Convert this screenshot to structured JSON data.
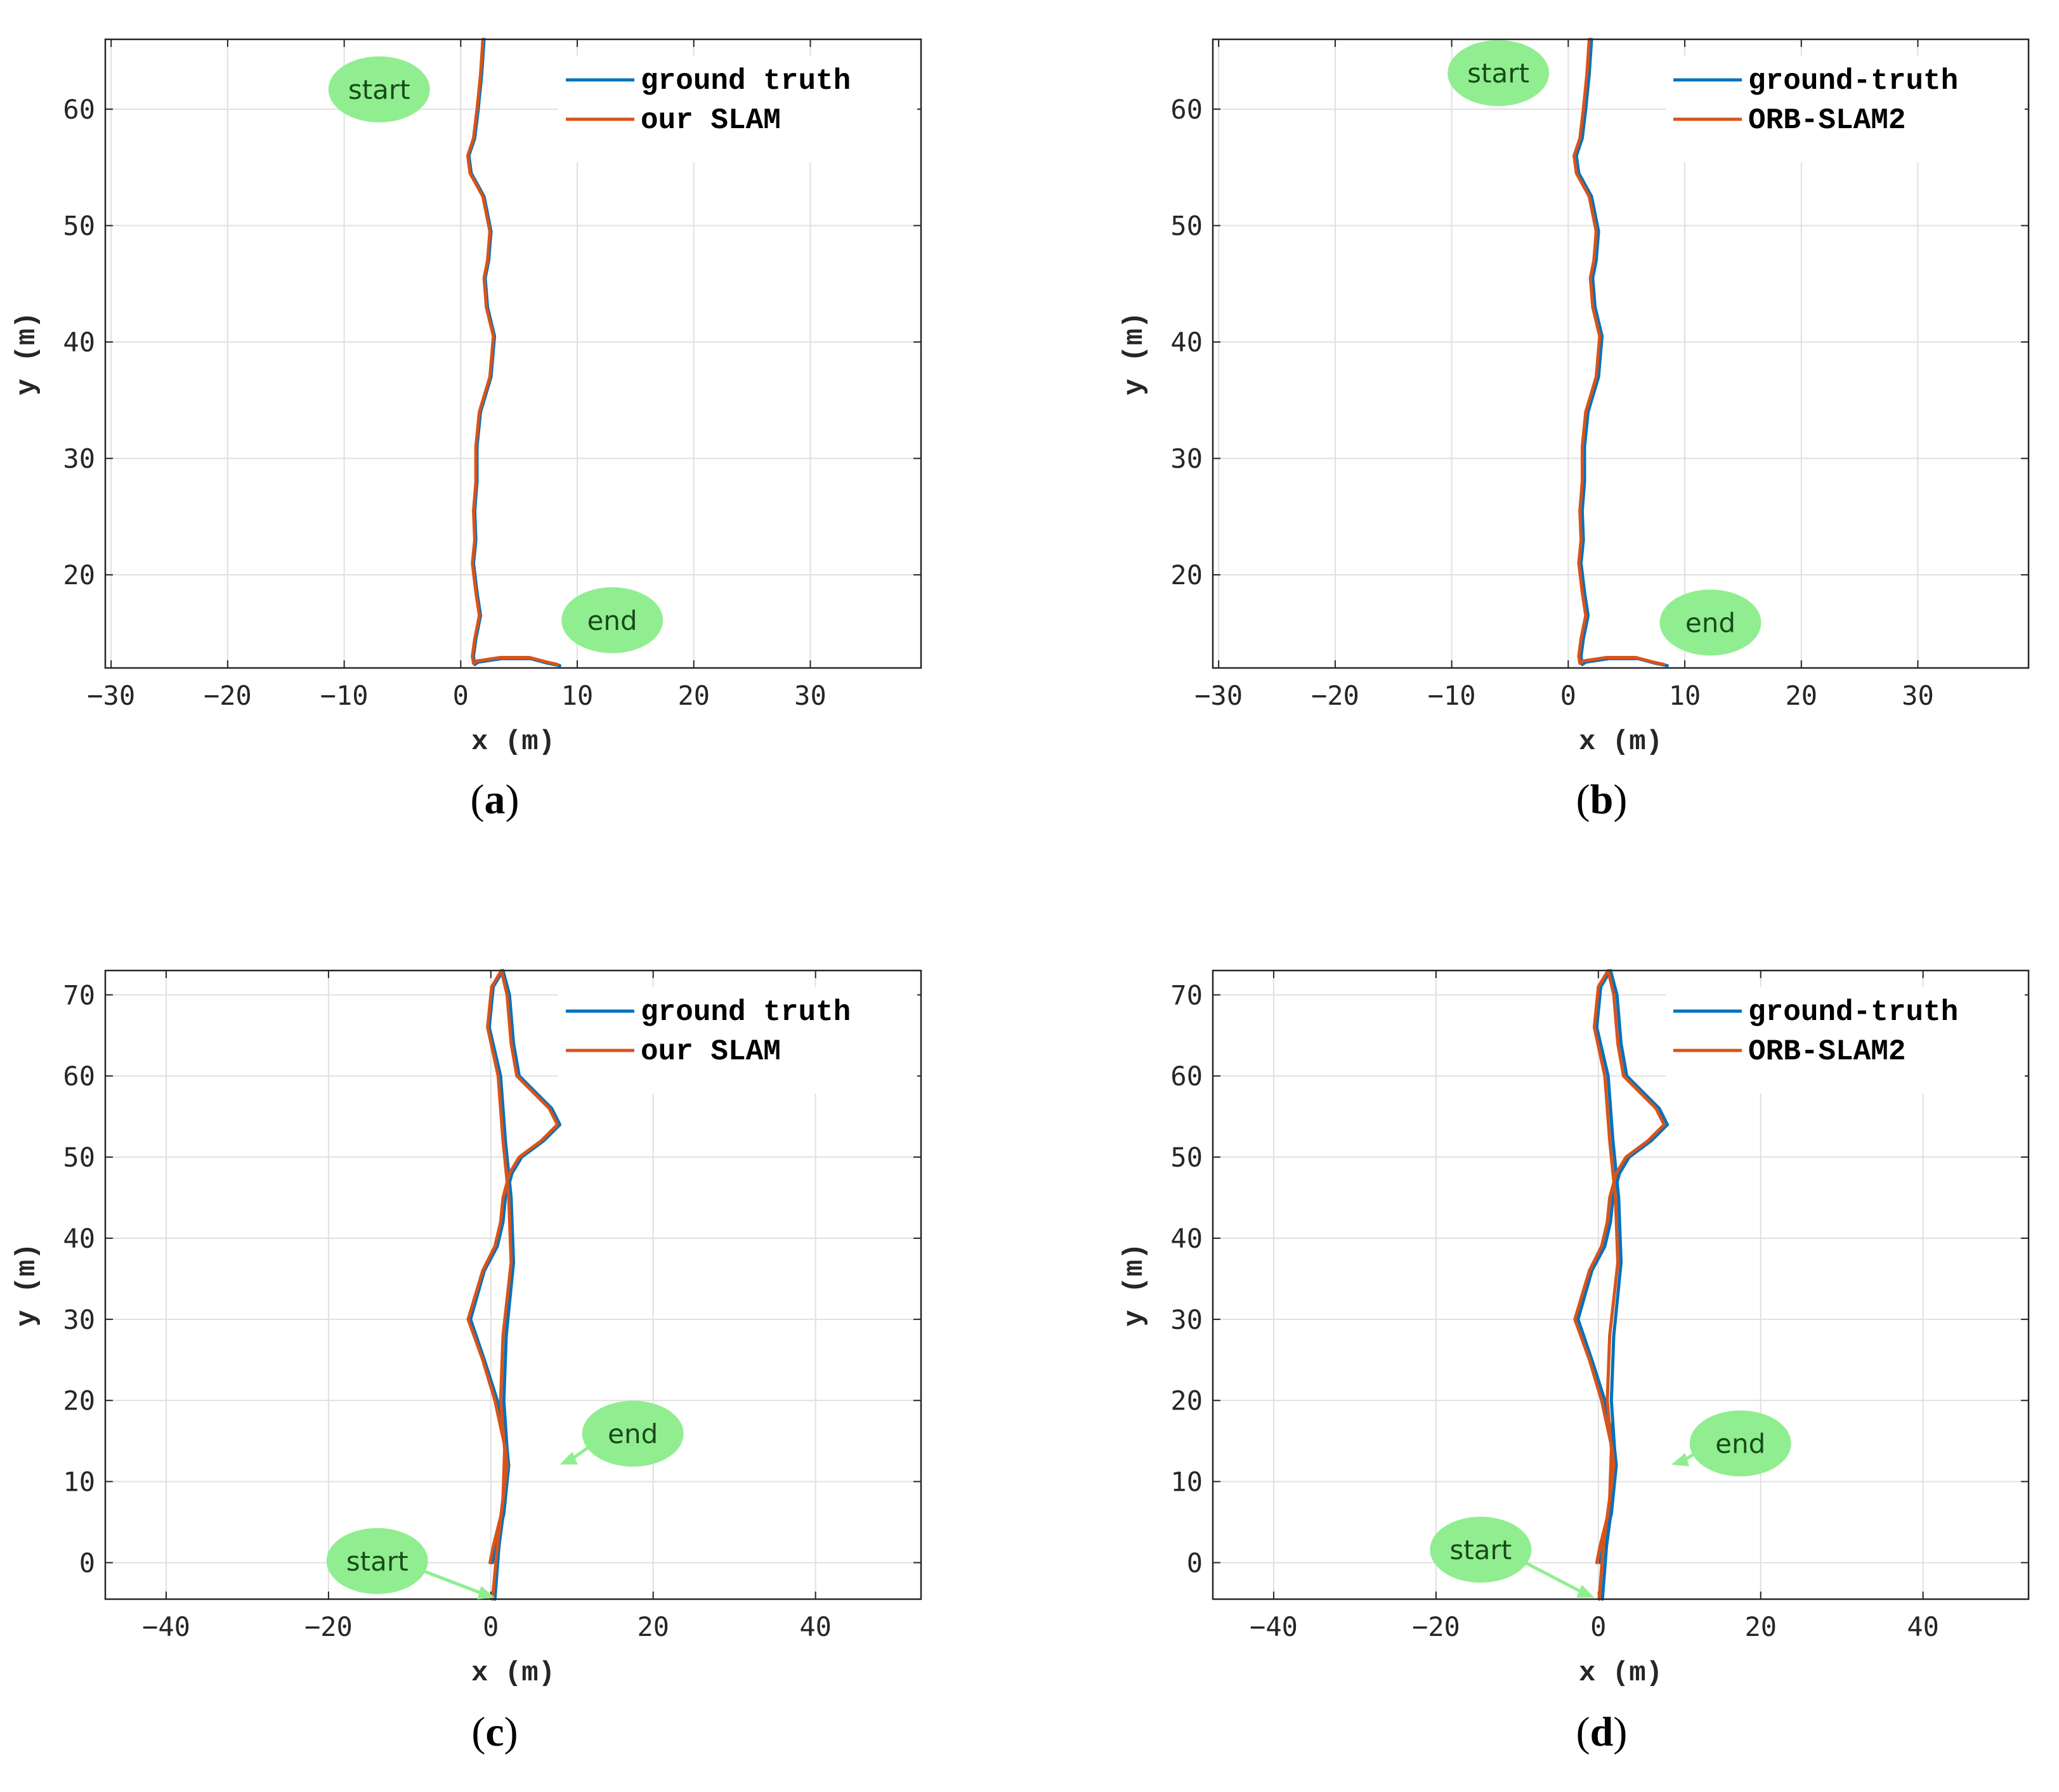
{
  "colors": {
    "ground_truth": "#0072BD",
    "slam": "#D95319",
    "annotation_fill": "#90EE90",
    "annotation_arrow": "#90EE90",
    "grid": "#e0e0e0",
    "axis": "#262626"
  },
  "chart_data": [
    {
      "id": "a",
      "type": "line",
      "caption_label": "a",
      "xlabel": "x (m)",
      "ylabel": "y (m)",
      "xlim": [
        -30.5,
        39.5
      ],
      "ylim": [
        12,
        66
      ],
      "xticks": [
        -30,
        -20,
        -10,
        0,
        10,
        20,
        30
      ],
      "yticks": [
        20,
        30,
        40,
        50,
        60
      ],
      "xtick_labels": [
        "−30",
        "−20",
        "−10",
        "0",
        "10",
        "20",
        "30"
      ],
      "ytick_labels": [
        "20",
        "30",
        "40",
        "50",
        "60"
      ],
      "grid": true,
      "legend_position": "top-right",
      "annotations": [
        {
          "text": "start",
          "x": -7,
          "y": 61.7
        },
        {
          "text": "end",
          "x": 13,
          "y": 16.1
        }
      ],
      "series": [
        {
          "name": "ground truth",
          "color_key": "ground_truth",
          "x": [
            2.0,
            1.8,
            1.5,
            1.2,
            0.7,
            0.9,
            2.0,
            2.6,
            2.4,
            2.1,
            2.3,
            2.9,
            2.6,
            1.7,
            1.4,
            1.4,
            1.2,
            1.3,
            1.1,
            1.4,
            1.7,
            1.3,
            1.1,
            1.2,
            1.5,
            3.5,
            6.0,
            7.5,
            8.5
          ],
          "y": [
            66,
            63,
            60,
            57.5,
            56,
            54.5,
            52.5,
            49.5,
            47,
            45.5,
            43,
            40.5,
            37,
            34,
            31,
            28,
            25.5,
            23,
            21,
            18.5,
            16.5,
            14.5,
            13,
            12.3,
            12.5,
            12.8,
            12.8,
            12.4,
            12.2
          ]
        },
        {
          "name": "our SLAM",
          "color_key": "slam",
          "x": [
            1.9,
            1.7,
            1.4,
            1.1,
            0.6,
            0.8,
            1.9,
            2.5,
            2.3,
            2.0,
            2.2,
            2.8,
            2.5,
            1.6,
            1.3,
            1.3,
            1.1,
            1.2,
            1.0,
            1.3,
            1.6,
            1.2,
            1.0,
            1.1,
            1.4,
            3.4,
            5.9,
            7.4,
            8.3
          ],
          "y": [
            66,
            63,
            60,
            57.5,
            56,
            54.5,
            52.5,
            49.5,
            47,
            45.5,
            43,
            40.5,
            37,
            34,
            31,
            28,
            25.5,
            23,
            21,
            18.5,
            16.5,
            14.5,
            13,
            12.4,
            12.6,
            12.9,
            12.9,
            12.5,
            12.3
          ]
        }
      ]
    },
    {
      "id": "b",
      "type": "line",
      "caption_label": "b",
      "xlabel": "x (m)",
      "ylabel": "y (m)",
      "xlim": [
        -30.5,
        39.5
      ],
      "ylim": [
        12,
        66
      ],
      "xticks": [
        -30,
        -20,
        -10,
        0,
        10,
        20,
        30
      ],
      "yticks": [
        20,
        30,
        40,
        50,
        60
      ],
      "xtick_labels": [
        "−30",
        "−20",
        "−10",
        "0",
        "10",
        "20",
        "30"
      ],
      "ytick_labels": [
        "20",
        "30",
        "40",
        "50",
        "60"
      ],
      "grid": true,
      "legend_position": "top-right",
      "annotations": [
        {
          "text": "start",
          "x": -6,
          "y": 63.1
        },
        {
          "text": "end",
          "x": 12.2,
          "y": 15.9
        }
      ],
      "series": [
        {
          "name": "ground-truth",
          "color_key": "ground_truth",
          "x": [
            2.0,
            1.8,
            1.5,
            1.2,
            0.7,
            0.9,
            2.0,
            2.6,
            2.4,
            2.1,
            2.3,
            2.9,
            2.6,
            1.7,
            1.4,
            1.4,
            1.2,
            1.3,
            1.1,
            1.4,
            1.7,
            1.3,
            1.1,
            1.2,
            1.5,
            3.5,
            6.0,
            7.5,
            8.5
          ],
          "y": [
            66,
            63,
            60,
            57.5,
            56,
            54.5,
            52.5,
            49.5,
            47,
            45.5,
            43,
            40.5,
            37,
            34,
            31,
            28,
            25.5,
            23,
            21,
            18.5,
            16.5,
            14.5,
            13,
            12.3,
            12.5,
            12.8,
            12.8,
            12.4,
            12.2
          ]
        },
        {
          "name": "ORB-SLAM2",
          "color_key": "slam",
          "x": [
            1.8,
            1.6,
            1.3,
            1.0,
            0.5,
            0.7,
            1.8,
            2.4,
            2.2,
            1.9,
            2.1,
            2.7,
            2.4,
            1.5,
            1.2,
            1.2,
            1.0,
            1.1,
            0.9,
            1.2,
            1.5,
            1.1,
            0.9,
            1.0,
            1.3,
            3.3,
            5.8,
            7.3,
            8.2
          ],
          "y": [
            66,
            63,
            60,
            57.5,
            56,
            54.5,
            52.5,
            49.5,
            47,
            45.5,
            43,
            40.5,
            37,
            34,
            31,
            28,
            25.5,
            23,
            21,
            18.5,
            16.5,
            14.5,
            13,
            12.4,
            12.6,
            12.9,
            12.9,
            12.5,
            12.3
          ]
        }
      ]
    },
    {
      "id": "c",
      "type": "line",
      "caption_label": "c",
      "xlabel": "x (m)",
      "ylabel": "y (m)",
      "xlim": [
        -47.5,
        53
      ],
      "ylim": [
        -4.5,
        73
      ],
      "xticks": [
        -40,
        -20,
        0,
        20,
        40
      ],
      "yticks": [
        0,
        10,
        20,
        30,
        40,
        50,
        60,
        70
      ],
      "xtick_labels": [
        "−40",
        "−20",
        "0",
        "20",
        "40"
      ],
      "ytick_labels": [
        "0",
        "10",
        "20",
        "30",
        "40",
        "50",
        "60",
        "70"
      ],
      "grid": true,
      "legend_position": "top-right",
      "annotations": [
        {
          "text": "end",
          "x": 17.5,
          "y": 15.9,
          "arrow_to": [
            8.5,
            12.1
          ]
        },
        {
          "text": "start",
          "x": -14,
          "y": 0.2,
          "arrow_to": [
            0.5,
            -4.3
          ]
        }
      ],
      "series": [
        {
          "name": "ground truth",
          "color_key": "ground_truth",
          "x": [
            0.5,
            1.0,
            1.8,
            2.0,
            1.6,
            1.9,
            2.8,
            2.5,
            1.8,
            1.2,
            -0.2,
            0.3,
            1.5,
            2.3,
            2.8,
            3.5,
            5.5,
            7.5,
            8.5,
            6.5,
            3.8,
            2.6,
            1.8,
            1.5,
            0.8,
            -0.8,
            -2.5,
            -0.8,
            0.8,
            2.0,
            2.2,
            1.6,
            0.6,
            0.2
          ],
          "y": [
            -4.5,
            2,
            8,
            14,
            20,
            28,
            37,
            45,
            52,
            60,
            66,
            71,
            73,
            70,
            64,
            60,
            58,
            56,
            54,
            52,
            50,
            48,
            45,
            42,
            39,
            36,
            30,
            25,
            20,
            14,
            12,
            6,
            2,
            0
          ]
        },
        {
          "name": "our SLAM",
          "color_key": "slam",
          "x": [
            0.2,
            0.8,
            1.5,
            1.7,
            1.2,
            1.5,
            2.5,
            2.2,
            1.5,
            0.9,
            -0.4,
            0.1,
            1.3,
            2.0,
            2.5,
            3.2,
            5.2,
            7.2,
            8.2,
            6.2,
            3.5,
            2.3,
            1.5,
            1.2,
            0.5,
            -1.0,
            -2.8,
            -1.0,
            0.5,
            1.8,
            2.0,
            1.3,
            0.3,
            -0.1
          ],
          "y": [
            -4.5,
            2,
            8,
            14,
            20,
            28,
            37,
            45,
            52,
            60,
            66,
            71,
            73,
            70,
            64,
            60,
            58,
            56,
            54,
            52,
            50,
            48,
            45,
            42,
            39,
            36,
            30,
            25,
            20,
            14,
            12,
            6,
            2,
            0
          ]
        }
      ]
    },
    {
      "id": "d",
      "type": "line",
      "caption_label": "d",
      "xlabel": "x (m)",
      "ylabel": "y (m)",
      "xlim": [
        -47.5,
        53
      ],
      "ylim": [
        -4.5,
        73
      ],
      "xticks": [
        -40,
        -20,
        0,
        20,
        40
      ],
      "yticks": [
        0,
        10,
        20,
        30,
        40,
        50,
        60,
        70
      ],
      "xtick_labels": [
        "−40",
        "−20",
        "0",
        "20",
        "40"
      ],
      "ytick_labels": [
        "0",
        "10",
        "20",
        "30",
        "40",
        "50",
        "60",
        "70"
      ],
      "grid": true,
      "legend_position": "top-right",
      "annotations": [
        {
          "text": "end",
          "x": 17.5,
          "y": 14.7,
          "arrow_to": [
            9.0,
            12.1
          ]
        },
        {
          "text": "start",
          "x": -14.5,
          "y": 1.6,
          "arrow_to": [
            -0.5,
            -4.3
          ]
        }
      ],
      "series": [
        {
          "name": "ground-truth",
          "color_key": "ground_truth",
          "x": [
            0.5,
            1.0,
            1.8,
            2.0,
            1.6,
            1.9,
            2.8,
            2.5,
            1.8,
            1.2,
            -0.2,
            0.3,
            1.5,
            2.3,
            2.8,
            3.5,
            5.5,
            7.5,
            8.5,
            6.5,
            3.8,
            2.6,
            1.8,
            1.5,
            0.8,
            -0.8,
            -2.5,
            -0.8,
            0.8,
            2.0,
            2.2,
            1.6,
            0.6,
            0.2
          ],
          "y": [
            -4.5,
            2,
            8,
            14,
            20,
            28,
            37,
            45,
            52,
            60,
            66,
            71,
            73,
            70,
            64,
            60,
            58,
            56,
            54,
            52,
            50,
            48,
            45,
            42,
            39,
            36,
            30,
            25,
            20,
            14,
            12,
            6,
            2,
            0
          ]
        },
        {
          "name": "ORB-SLAM2",
          "color_key": "slam",
          "x": [
            0.1,
            0.6,
            1.4,
            1.6,
            1.1,
            1.4,
            2.4,
            2.1,
            1.4,
            0.8,
            -0.5,
            0.0,
            1.2,
            1.9,
            2.4,
            3.1,
            5.1,
            7.1,
            8.1,
            6.1,
            3.4,
            2.2,
            1.4,
            1.1,
            0.4,
            -1.1,
            -2.9,
            -1.1,
            0.4,
            1.7,
            1.9,
            1.2,
            0.2,
            -0.2
          ],
          "y": [
            -4.5,
            2,
            8,
            14,
            20,
            28,
            37,
            45,
            52,
            60,
            66,
            71,
            73,
            70,
            64,
            60,
            58,
            56,
            54,
            52,
            50,
            48,
            45,
            42,
            39,
            36,
            30,
            25,
            20,
            14,
            12,
            6,
            2,
            0
          ]
        }
      ]
    }
  ]
}
